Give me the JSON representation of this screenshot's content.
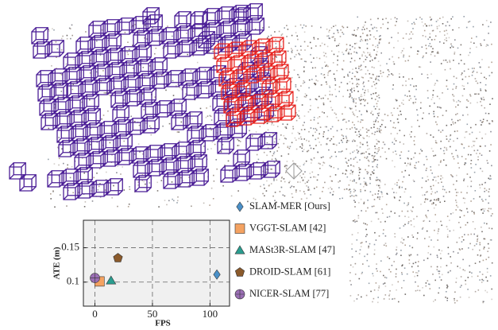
{
  "chart_data": {
    "type": "scatter",
    "x_label": "FPS",
    "y_label": "ATE (m)",
    "xlim": [
      -10,
      117
    ],
    "ylim": [
      0.065,
      0.19
    ],
    "xticks": [
      0,
      50,
      100
    ],
    "yticks": [
      0.1,
      0.15
    ],
    "grid": true,
    "legend": "right",
    "series": [
      {
        "name": "SLAM-MER [Ours]",
        "color": "#4a90c8",
        "marker": "diamond",
        "x": [
          106
        ],
        "values": [
          0.111
        ]
      },
      {
        "name": "VGGT-SLAM [42]",
        "color": "#f4a261",
        "marker": "square",
        "x": [
          4
        ],
        "values": [
          0.101
        ]
      },
      {
        "name": "MASt3R-SLAM [47]",
        "color": "#2a9d8f",
        "marker": "triangle",
        "x": [
          14
        ],
        "values": [
          0.102
        ]
      },
      {
        "name": "DROID-SLAM [61]",
        "color": "#8b5a2b",
        "marker": "pentagon",
        "x": [
          20
        ],
        "values": [
          0.135
        ]
      },
      {
        "name": "NICER-SLAM [77]",
        "color": "#9b6fb5",
        "marker": "circle-plus",
        "x": [
          0
        ],
        "values": [
          0.106
        ]
      }
    ]
  }
}
